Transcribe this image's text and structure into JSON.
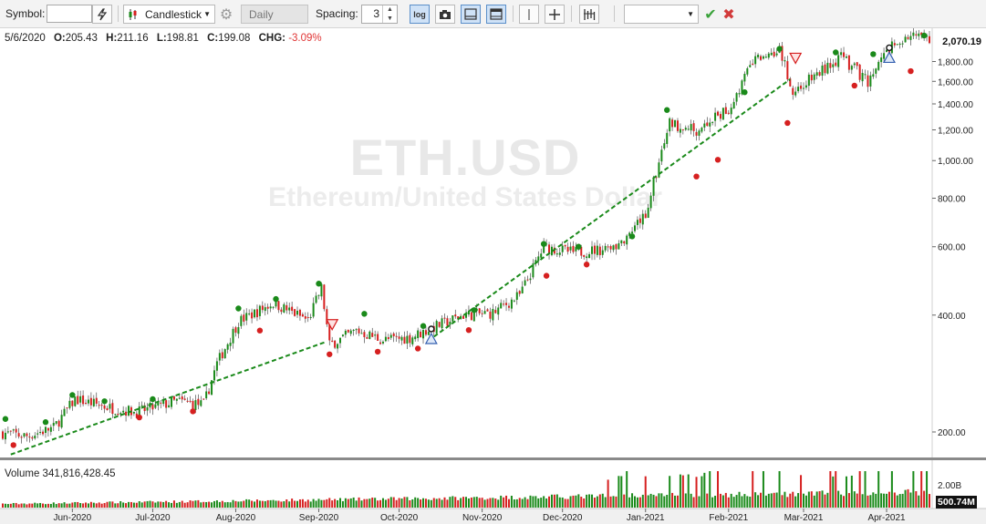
{
  "toolbar": {
    "symbol_label": "Symbol:",
    "symbol_value": "",
    "chart_type": "Candlestick",
    "period": "Daily",
    "spacing_label": "Spacing:",
    "spacing_value": "3",
    "log_label": "log",
    "right_dropdown_value": ""
  },
  "header": {
    "date": "5/6/2020",
    "o_label": "O:",
    "open": "205.43",
    "h_label": "H:",
    "high": "211.16",
    "l_label": "L:",
    "low": "198.81",
    "c_label": "C:",
    "close": "199.08",
    "chg_label": "CHG:",
    "change": "-3.09%"
  },
  "watermark": {
    "symbol": "ETH.USD",
    "name": "Ethereum/United States Dollar"
  },
  "price_axis": {
    "labels": [
      "1,800.00",
      "1,600.00",
      "1,400.00",
      "1,200.00",
      "1,000.00",
      "800.00",
      "600.00",
      "400.00",
      "200.00"
    ],
    "last_price": "2,070.19"
  },
  "volume": {
    "label": "Volume 341,816,428.45",
    "axis_label": "2.00B",
    "last_value": "500.74M"
  },
  "time_axis": {
    "labels": [
      "Jun-2020",
      "Jul-2020",
      "Aug-2020",
      "Sep-2020",
      "Oct-2020",
      "Nov-2020",
      "Dec-2020",
      "Jan-2021",
      "Feb-2021",
      "Mar-2021",
      "Apr-2021"
    ]
  },
  "colors": {
    "up": "#1a8a1a",
    "down": "#d62020",
    "trend": "#1a8a1a",
    "accent": "#5b8fc9"
  },
  "chart_data": {
    "type": "candlestick",
    "scale": "log",
    "ylim": [
      170,
      2150
    ],
    "x_range": [
      "2020-05-06",
      "2021-04-17"
    ],
    "close_path": [
      [
        "2020-05-06",
        199
      ],
      [
        "2020-05-15",
        195
      ],
      [
        "2020-05-25",
        205
      ],
      [
        "2020-06-02",
        243
      ],
      [
        "2020-06-15",
        231
      ],
      [
        "2020-06-25",
        225
      ],
      [
        "2020-07-10",
        240
      ],
      [
        "2020-07-20",
        235
      ],
      [
        "2020-07-25",
        300
      ],
      [
        "2020-08-02",
        385
      ],
      [
        "2020-08-15",
        430
      ],
      [
        "2020-08-28",
        388
      ],
      [
        "2020-09-02",
        470
      ],
      [
        "2020-09-05",
        335
      ],
      [
        "2020-09-15",
        365
      ],
      [
        "2020-09-25",
        345
      ],
      [
        "2020-10-05",
        350
      ],
      [
        "2020-10-15",
        375
      ],
      [
        "2020-10-25",
        400
      ],
      [
        "2020-11-05",
        405
      ],
      [
        "2020-11-15",
        450
      ],
      [
        "2020-11-24",
        600
      ],
      [
        "2020-12-05",
        580
      ],
      [
        "2020-12-15",
        590
      ],
      [
        "2020-12-25",
        620
      ],
      [
        "2021-01-01",
        730
      ],
      [
        "2021-01-10",
        1250
      ],
      [
        "2021-01-20",
        1200
      ],
      [
        "2021-02-01",
        1350
      ],
      [
        "2021-02-10",
        1800
      ],
      [
        "2021-02-20",
        1950
      ],
      [
        "2021-02-25",
        1500
      ],
      [
        "2021-03-05",
        1650
      ],
      [
        "2021-03-15",
        1850
      ],
      [
        "2021-03-25",
        1600
      ],
      [
        "2021-04-02",
        1950
      ],
      [
        "2021-04-10",
        2090
      ],
      [
        "2021-04-17",
        2070
      ]
    ],
    "swing_highs": [
      [
        "2020-05-07",
        216
      ],
      [
        "2020-05-22",
        212
      ],
      [
        "2020-06-01",
        249
      ],
      [
        "2020-06-13",
        240
      ],
      [
        "2020-07-01",
        243
      ],
      [
        "2020-08-02",
        416
      ],
      [
        "2020-08-16",
        440
      ],
      [
        "2020-09-01",
        482
      ],
      [
        "2020-09-18",
        403
      ],
      [
        "2020-10-10",
        375
      ],
      [
        "2020-10-29",
        412
      ],
      [
        "2020-11-24",
        610
      ],
      [
        "2020-12-07",
        600
      ],
      [
        "2020-12-27",
        638
      ],
      [
        "2021-01-09",
        1350
      ],
      [
        "2021-02-07",
        1500
      ],
      [
        "2021-02-20",
        1940
      ],
      [
        "2021-03-13",
        1900
      ],
      [
        "2021-03-27",
        1880
      ],
      [
        "2021-04-15",
        2100
      ]
    ],
    "swing_lows": [
      [
        "2020-05-10",
        185
      ],
      [
        "2020-06-26",
        218
      ],
      [
        "2020-07-16",
        226
      ],
      [
        "2020-08-10",
        365
      ],
      [
        "2020-09-05",
        317
      ],
      [
        "2020-09-23",
        322
      ],
      [
        "2020-10-08",
        328
      ],
      [
        "2020-10-27",
        366
      ],
      [
        "2020-11-25",
        505
      ],
      [
        "2020-12-10",
        540
      ],
      [
        "2021-01-20",
        910
      ],
      [
        "2021-01-28",
        1005
      ],
      [
        "2021-02-23",
        1250
      ],
      [
        "2021-03-20",
        1560
      ],
      [
        "2021-04-10",
        1700
      ]
    ],
    "trendlines": [
      {
        "from": [
          "2020-05-09",
          175
        ],
        "to": [
          "2020-09-04",
          342
        ]
      },
      {
        "from": [
          "2020-10-14",
          352
        ],
        "to": [
          "2021-02-24",
          1620
        ]
      }
    ],
    "signals": [
      {
        "type": "sell",
        "date": "2020-09-06",
        "price": 377
      },
      {
        "type": "buy",
        "date": "2020-10-13",
        "price": 349
      },
      {
        "type": "sell",
        "date": "2021-02-26",
        "price": 1830
      },
      {
        "type": "buy",
        "date": "2021-04-02",
        "price": 1850
      }
    ]
  }
}
